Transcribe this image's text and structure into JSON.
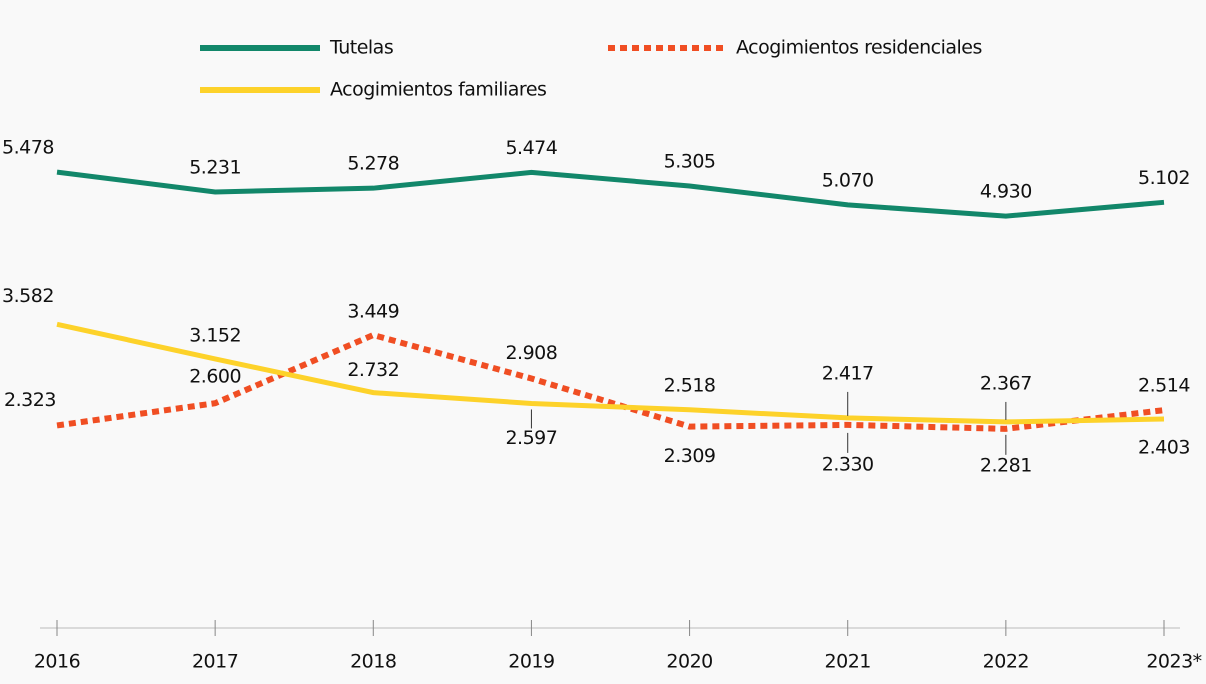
{
  "chart_data": {
    "type": "line",
    "categories": [
      "2016",
      "2017",
      "2018",
      "2019",
      "2020",
      "2021",
      "2022",
      "2023*"
    ],
    "series": [
      {
        "name": "Tutelas",
        "color": "#12876a",
        "style": "solid",
        "values": [
          5478,
          5231,
          5278,
          5474,
          5305,
          5070,
          4930,
          5102
        ],
        "value_labels": [
          "5.478",
          "5.231",
          "5.278",
          "5.474",
          "5.305",
          "5.070",
          "4.930",
          "5.102"
        ]
      },
      {
        "name": "Acogimientos residenciales",
        "color": "#f04e23",
        "style": "dotted",
        "values": [
          2323,
          2600,
          3449,
          2908,
          2309,
          2330,
          2281,
          2514
        ],
        "value_labels": [
          "2.323",
          "2.600",
          "3.449",
          "2.908",
          "2.309",
          "2.330",
          "2.281",
          "2.514"
        ]
      },
      {
        "name": "Acogimientos familiares",
        "color": "#fdd22a",
        "style": "solid",
        "values": [
          3582,
          3152,
          2732,
          2597,
          2518,
          2417,
          2367,
          2403
        ],
        "value_labels": [
          "3.582",
          "3.152",
          "2.732",
          "2.597",
          "2.518",
          "2.417",
          "2.367",
          "2.403"
        ]
      }
    ]
  }
}
